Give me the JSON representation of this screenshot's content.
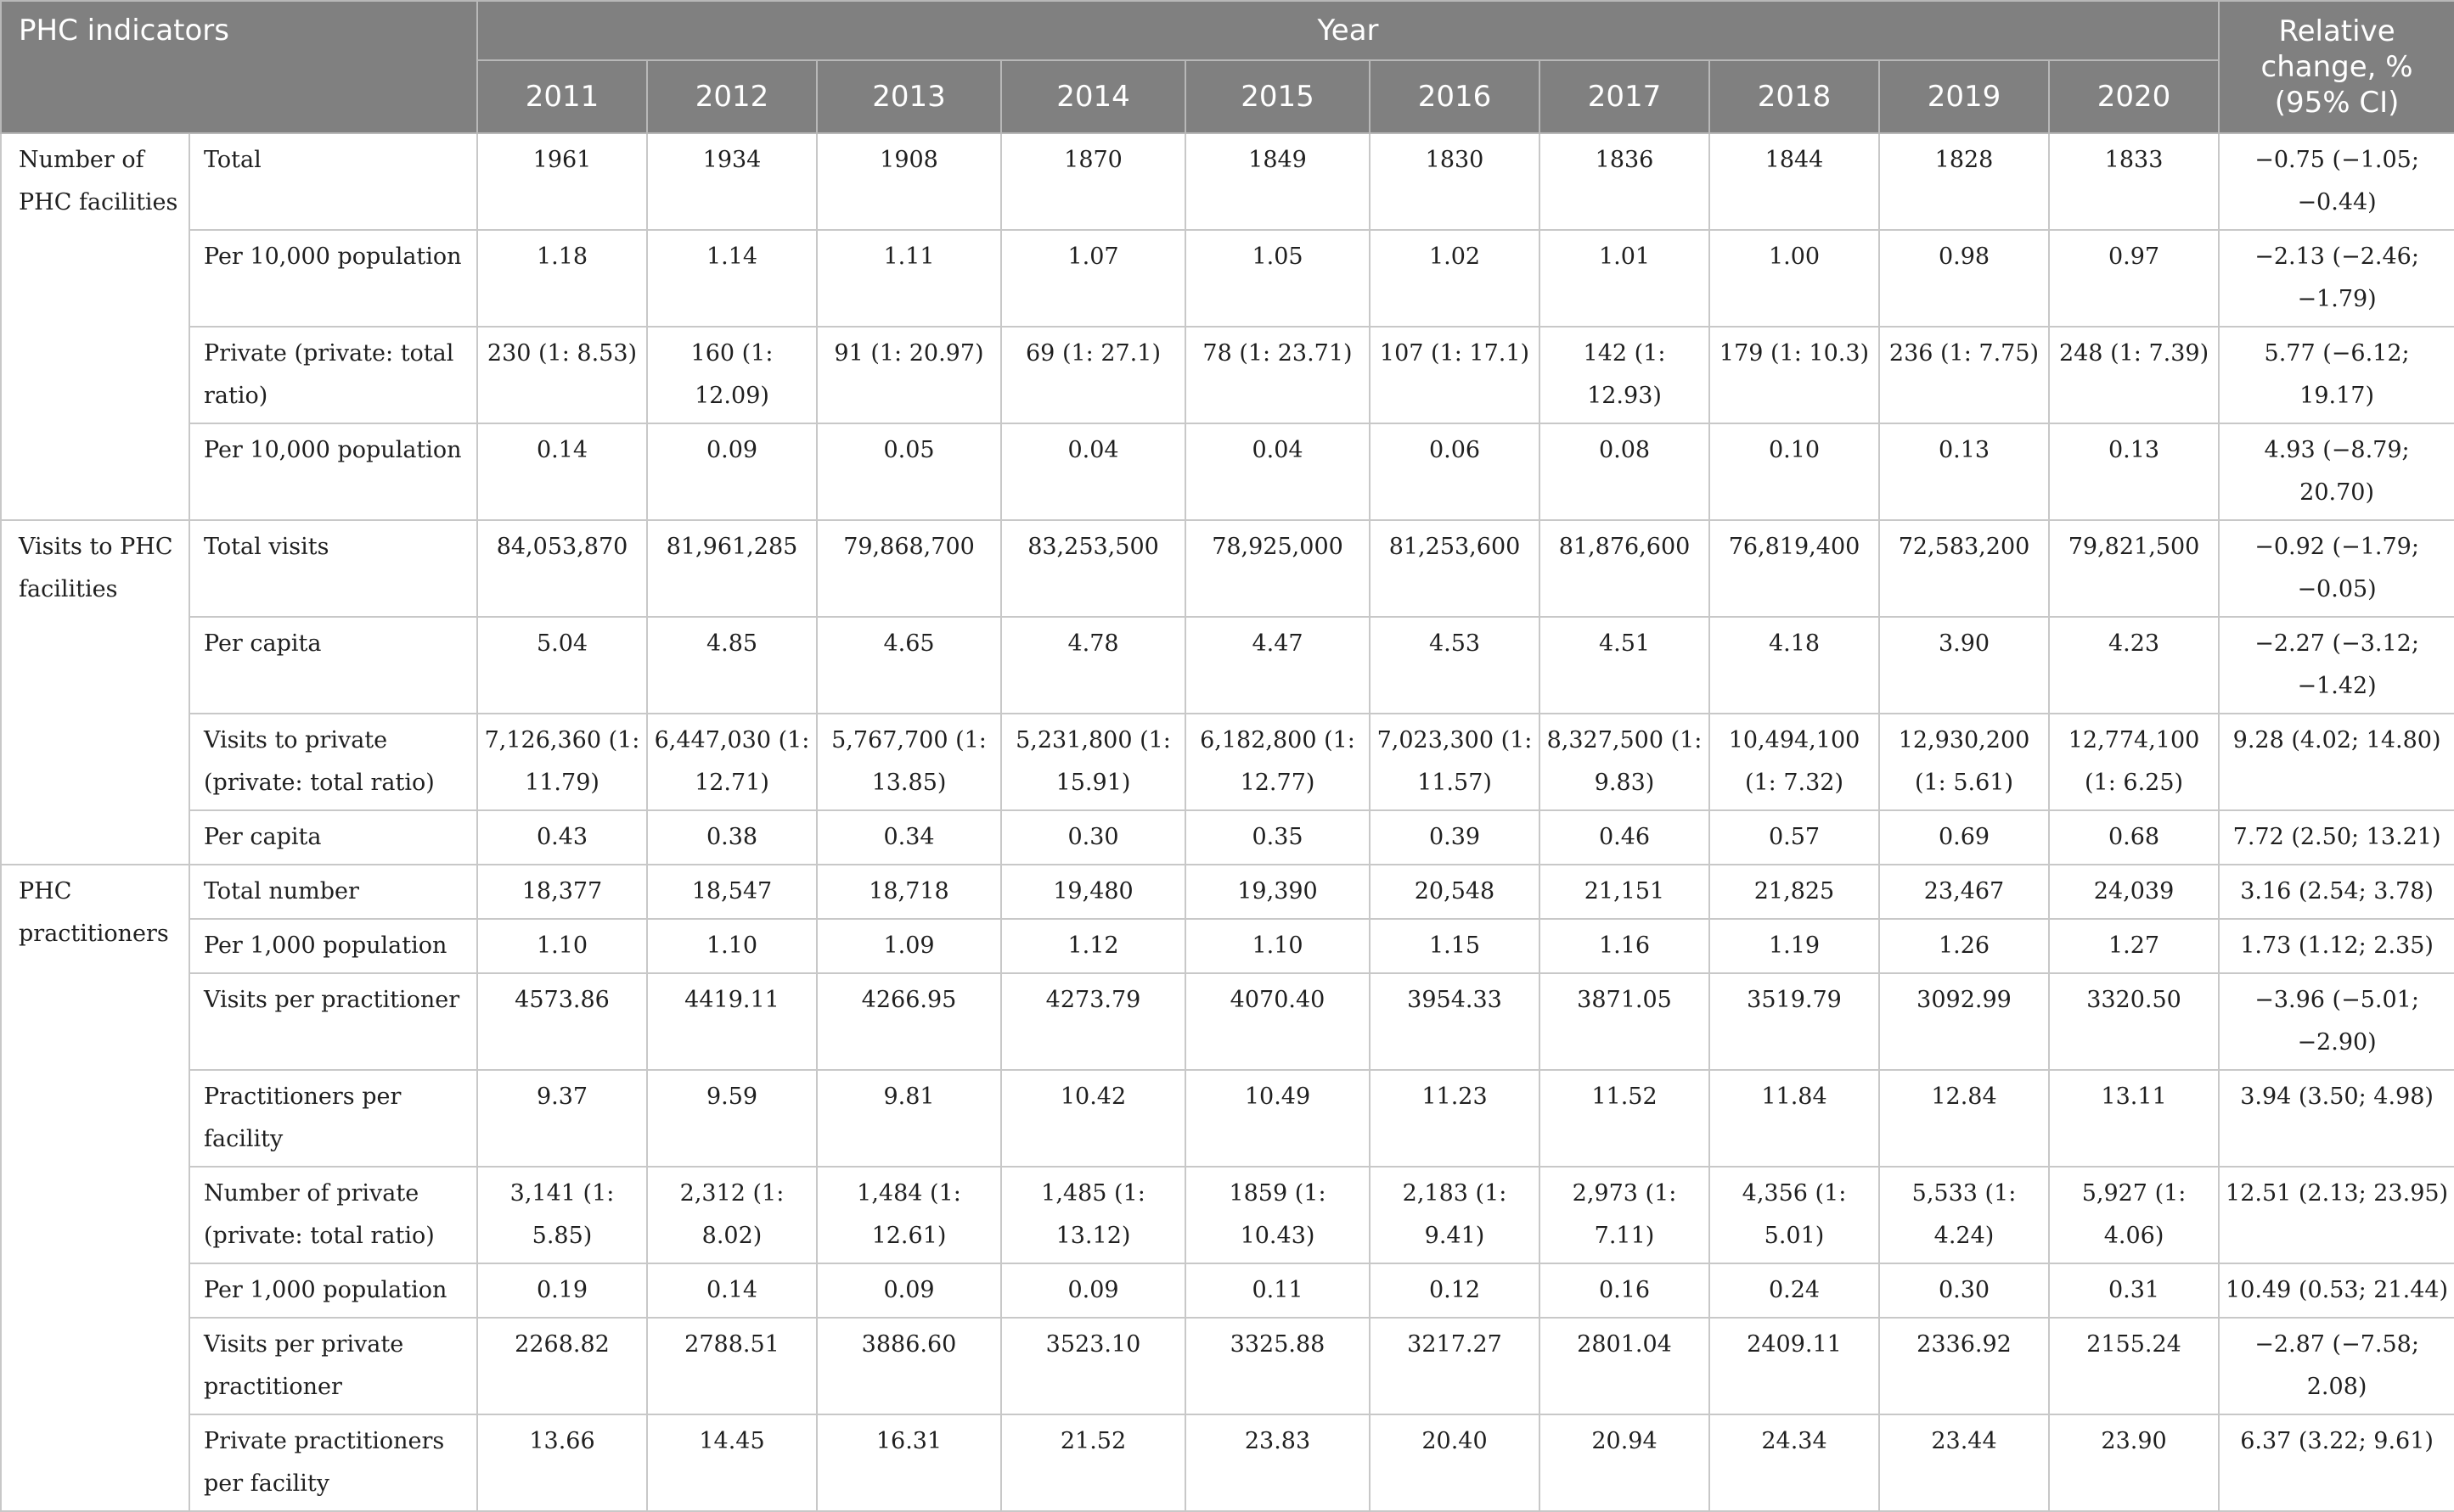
{
  "header": {
    "indicators": "PHC indicators",
    "year": "Year",
    "years": [
      "2011",
      "2012",
      "2013",
      "2014",
      "2015",
      "2016",
      "2017",
      "2018",
      "2019",
      "2020"
    ],
    "relative_change": "Relative change, % (95% CI)"
  },
  "groups": [
    {
      "label": "Number of PHC facilities",
      "rows": [
        {
          "label": "Total",
          "values": [
            "1961",
            "1934",
            "1908",
            "1870",
            "1849",
            "1830",
            "1836",
            "1844",
            "1828",
            "1833"
          ],
          "change": "−0.75 (−1.05; −0.44)"
        },
        {
          "label": "Per 10,000 population",
          "values": [
            "1.18",
            "1.14",
            "1.11",
            "1.07",
            "1.05",
            "1.02",
            "1.01",
            "1.00",
            "0.98",
            "0.97"
          ],
          "change": "−2.13 (−2.46; −1.79)"
        },
        {
          "label": "Private (private: total ratio)",
          "values": [
            "230 (1: 8.53)",
            "160 (1: 12.09)",
            "91 (1: 20.97)",
            "69 (1: 27.1)",
            "78 (1: 23.71)",
            "107 (1: 17.1)",
            "142 (1: 12.93)",
            "179 (1: 10.3)",
            "236 (1: 7.75)",
            "248 (1: 7.39)"
          ],
          "change": "5.77 (−6.12; 19.17)"
        },
        {
          "label": "Per 10,000 population",
          "values": [
            "0.14",
            "0.09",
            "0.05",
            "0.04",
            "0.04",
            "0.06",
            "0.08",
            "0.10",
            "0.13",
            "0.13"
          ],
          "change": "4.93 (−8.79; 20.70)"
        }
      ]
    },
    {
      "label": "Visits to PHC facilities",
      "rows": [
        {
          "label": "Total visits",
          "values": [
            "84,053,870",
            "81,961,285",
            "79,868,700",
            "83,253,500",
            "78,925,000",
            "81,253,600",
            "81,876,600",
            "76,819,400",
            "72,583,200",
            "79,821,500"
          ],
          "change": "−0.92 (−1.79; −0.05)"
        },
        {
          "label": "Per capita",
          "values": [
            "5.04",
            "4.85",
            "4.65",
            "4.78",
            "4.47",
            "4.53",
            "4.51",
            "4.18",
            "3.90",
            "4.23"
          ],
          "change": "−2.27 (−3.12; −1.42)"
        },
        {
          "label": "Visits to private (private: total ratio)",
          "values": [
            "7,126,360 (1: 11.79)",
            "6,447,030 (1: 12.71)",
            "5,767,700 (1: 13.85)",
            "5,231,800 (1: 15.91)",
            "6,182,800 (1: 12.77)",
            "7,023,300 (1: 11.57)",
            "8,327,500 (1: 9.83)",
            "10,494,100 (1: 7.32)",
            "12,930,200 (1: 5.61)",
            "12,774,100 (1: 6.25)"
          ],
          "change": "9.28 (4.02; 14.80)"
        },
        {
          "label": "Per capita",
          "values": [
            "0.43",
            "0.38",
            "0.34",
            "0.30",
            "0.35",
            "0.39",
            "0.46",
            "0.57",
            "0.69",
            "0.68"
          ],
          "change": "7.72 (2.50; 13.21)"
        }
      ]
    },
    {
      "label": "PHC practitioners",
      "rows": [
        {
          "label": "Total number",
          "values": [
            "18,377",
            "18,547",
            "18,718",
            "19,480",
            "19,390",
            "20,548",
            "21,151",
            "21,825",
            "23,467",
            "24,039"
          ],
          "change": "3.16 (2.54; 3.78)"
        },
        {
          "label": "Per 1,000 population",
          "values": [
            "1.10",
            "1.10",
            "1.09",
            "1.12",
            "1.10",
            "1.15",
            "1.16",
            "1.19",
            "1.26",
            "1.27"
          ],
          "change": "1.73 (1.12; 2.35)"
        },
        {
          "label": "Visits per practitioner",
          "values": [
            "4573.86",
            "4419.11",
            "4266.95",
            "4273.79",
            "4070.40",
            "3954.33",
            "3871.05",
            "3519.79",
            "3092.99",
            "3320.50"
          ],
          "change": "−3.96 (−5.01; −2.90)"
        },
        {
          "label": "Practitioners per facility",
          "values": [
            "9.37",
            "9.59",
            "9.81",
            "10.42",
            "10.49",
            "11.23",
            "11.52",
            "11.84",
            "12.84",
            "13.11"
          ],
          "change": "3.94 (3.50; 4.98)"
        },
        {
          "label": "Number of private (private: total ratio)",
          "values": [
            "3,141 (1: 5.85)",
            "2,312 (1: 8.02)",
            "1,484 (1: 12.61)",
            "1,485 (1: 13.12)",
            "1859 (1: 10.43)",
            "2,183 (1: 9.41)",
            "2,973 (1: 7.11)",
            "4,356 (1: 5.01)",
            "5,533 (1: 4.24)",
            "5,927 (1: 4.06)"
          ],
          "change": "12.51 (2.13; 23.95)"
        },
        {
          "label": "Per 1,000 population",
          "values": [
            "0.19",
            "0.14",
            "0.09",
            "0.09",
            "0.11",
            "0.12",
            "0.16",
            "0.24",
            "0.30",
            "0.31"
          ],
          "change": "10.49 (0.53; 21.44)"
        },
        {
          "label": "Visits per private practitioner",
          "values": [
            "2268.82",
            "2788.51",
            "3886.60",
            "3523.10",
            "3325.88",
            "3217.27",
            "2801.04",
            "2409.11",
            "2336.92",
            "2155.24"
          ],
          "change": "−2.87 (−7.58; 2.08)"
        },
        {
          "label": "Private practitioners per facility",
          "values": [
            "13.66",
            "14.45",
            "16.31",
            "21.52",
            "23.83",
            "20.40",
            "20.94",
            "24.34",
            "23.44",
            "23.90"
          ],
          "change": "6.37 (3.22; 9.61)"
        }
      ]
    }
  ]
}
